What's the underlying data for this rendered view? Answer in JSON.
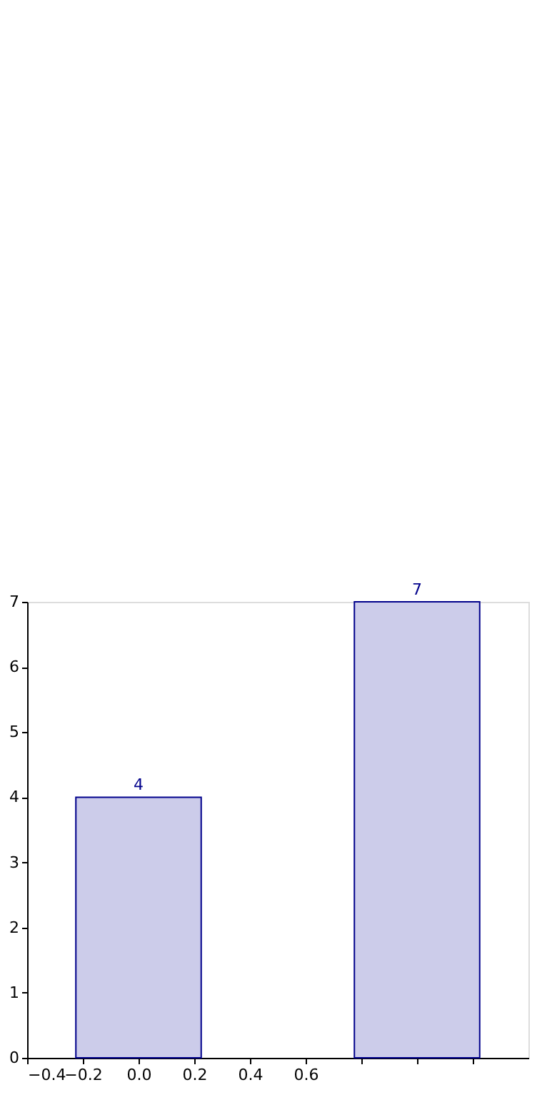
{
  "chart_data": {
    "type": "bar",
    "x": [
      0,
      1
    ],
    "values": [
      4,
      7
    ],
    "color": "#ccccea",
    "xlim": [
      -0.4,
      1.4
    ],
    "xticks": [
      -0.4,
      -0.2,
      {
        "value": 0,
        "label": "0.0"
      },
      0.2,
      0.4,
      0.6,
      {
        "value": 0.8,
        "label": null
      },
      {
        "value": 1.0,
        "label": null
      },
      {
        "value": 1.2,
        "label": null
      }
    ],
    "ylim": [
      0,
      7
    ],
    "yticks": [
      0,
      1,
      2,
      3,
      4,
      5,
      6,
      7
    ],
    "data_labels": true,
    "grid": false
  }
}
